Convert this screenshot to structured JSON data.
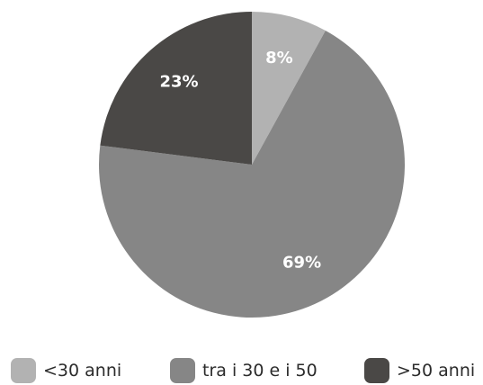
{
  "chart_data": {
    "type": "pie",
    "categories": [
      "<30 anni",
      "tra i 30 e i 50",
      ">50 anni"
    ],
    "values": [
      8,
      69,
      23
    ],
    "data_labels": [
      "8%",
      "69%",
      "23%"
    ],
    "colors": [
      "#b2b2b2",
      "#868686",
      "#4a4846"
    ],
    "start_angle": "12 o'clock",
    "direction": "clockwise",
    "legend_position": "bottom"
  },
  "legend": {
    "items": [
      {
        "label": "<30 anni",
        "color": "#b2b2b2"
      },
      {
        "label": "tra i 30 e i 50",
        "color": "#868686"
      },
      {
        "label": ">50 anni",
        "color": "#4a4846"
      }
    ]
  }
}
